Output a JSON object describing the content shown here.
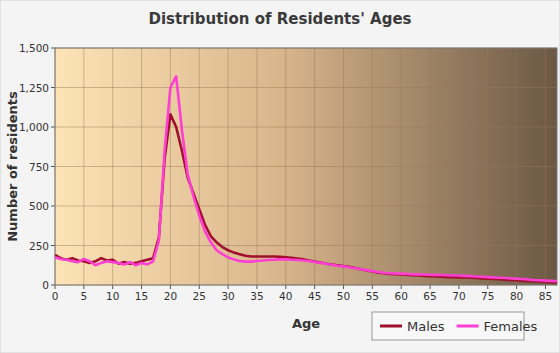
{
  "chart_data": {
    "type": "line",
    "title": "Distribution of Residents' Ages",
    "x_label": "Age",
    "y_label": "Number of residents",
    "x": [
      0,
      1,
      2,
      3,
      4,
      5,
      6,
      7,
      8,
      9,
      10,
      11,
      12,
      13,
      14,
      15,
      16,
      17,
      18,
      19,
      20,
      21,
      22,
      23,
      24,
      25,
      26,
      27,
      28,
      29,
      30,
      31,
      32,
      33,
      34,
      35,
      36,
      37,
      38,
      39,
      40,
      41,
      42,
      43,
      44,
      45,
      46,
      47,
      48,
      49,
      50,
      51,
      52,
      53,
      54,
      55,
      56,
      57,
      58,
      59,
      60,
      61,
      62,
      63,
      64,
      65,
      66,
      67,
      68,
      69,
      70,
      71,
      72,
      73,
      74,
      75,
      76,
      77,
      78,
      79,
      80,
      81,
      82,
      83,
      84,
      85,
      86,
      87
    ],
    "series": [
      {
        "name": "Males",
        "color": "#a0102e",
        "values": [
          190,
          170,
          160,
          170,
          155,
          150,
          140,
          150,
          170,
          155,
          160,
          135,
          145,
          135,
          140,
          150,
          160,
          170,
          300,
          800,
          1080,
          1000,
          850,
          680,
          580,
          480,
          380,
          310,
          270,
          240,
          220,
          205,
          195,
          185,
          180,
          180,
          180,
          180,
          180,
          178,
          175,
          172,
          168,
          162,
          155,
          148,
          142,
          135,
          130,
          125,
          120,
          115,
          108,
          100,
          92,
          85,
          78,
          74,
          70,
          68,
          66,
          64,
          62,
          60,
          58,
          56,
          54,
          52,
          50,
          49,
          48,
          47,
          46,
          44,
          42,
          40,
          38,
          36,
          34,
          32,
          30,
          28,
          26,
          24,
          22,
          20,
          18,
          16
        ]
      },
      {
        "name": "Females",
        "color": "#ff3fd4",
        "values": [
          175,
          165,
          160,
          150,
          145,
          165,
          150,
          125,
          140,
          150,
          145,
          140,
          130,
          145,
          125,
          140,
          130,
          150,
          280,
          850,
          1250,
          1320,
          980,
          700,
          560,
          440,
          340,
          270,
          220,
          195,
          175,
          162,
          152,
          148,
          148,
          152,
          155,
          158,
          160,
          162,
          162,
          160,
          158,
          155,
          152,
          146,
          140,
          134,
          128,
          122,
          118,
          112,
          106,
          100,
          94,
          88,
          82,
          78,
          75,
          73,
          72,
          70,
          68,
          67,
          66,
          65,
          64,
          63,
          62,
          61,
          60,
          58,
          56,
          54,
          52,
          50,
          48,
          46,
          44,
          42,
          40,
          38,
          35,
          32,
          30,
          28,
          26,
          24
        ]
      }
    ],
    "xlim": [
      0,
      87
    ],
    "ylim": [
      0,
      1500
    ],
    "xticks": [
      0,
      5,
      10,
      15,
      20,
      25,
      30,
      35,
      40,
      45,
      50,
      55,
      60,
      65,
      70,
      75,
      80,
      85
    ],
    "yticks": [
      0,
      250,
      500,
      750,
      {
        "value": 1000,
        "label": "1,000"
      },
      {
        "value": 1250,
        "label": "1,250"
      },
      {
        "value": 1500,
        "label": "1,500"
      }
    ],
    "grid": true,
    "legend": "bottom right"
  }
}
